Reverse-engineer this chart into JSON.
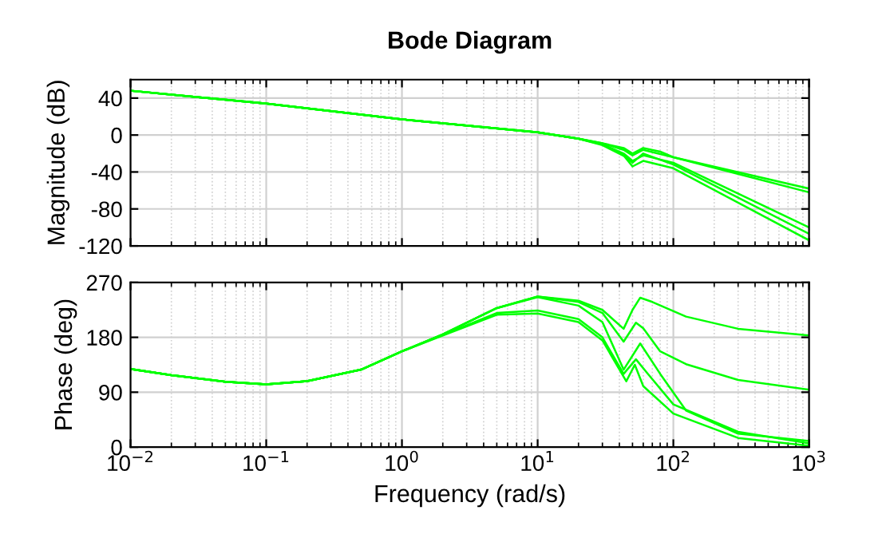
{
  "chart_data": [
    {
      "type": "line",
      "title": "Bode Diagram",
      "ylabel": "Magnitude (dB)",
      "log": "x",
      "grid": true,
      "line_style": "solid",
      "tick_labels": "y",
      "xlim": [
        0.01,
        1000
      ],
      "xticks": [
        {
          "value": 0.01,
          "label": null
        },
        {
          "value": 0.1,
          "label": null
        },
        {
          "value": 1,
          "label": null
        },
        {
          "value": 10,
          "label": null
        },
        {
          "value": 100,
          "label": null
        },
        {
          "value": 1000,
          "label": null
        }
      ],
      "ylim": [
        -120,
        60
      ],
      "yticks": [
        40,
        0,
        -40,
        -80,
        -120
      ],
      "series": [
        {
          "color": "#00ff00",
          "x": [
            0.01,
            0.1,
            1,
            10,
            20,
            30,
            43,
            50,
            60,
            80,
            100,
            1000
          ],
          "values": [
            48,
            34,
            17,
            3,
            -4,
            -9,
            -14,
            -20,
            -14,
            -18,
            -24,
            -58
          ]
        },
        {
          "color": "#00ff00",
          "x": [
            0.01,
            0.1,
            1,
            10,
            20,
            30,
            43,
            50,
            60,
            100,
            1000
          ],
          "values": [
            48,
            34,
            17,
            3,
            -4,
            -9,
            -16,
            -22,
            -16,
            -24,
            -62
          ]
        },
        {
          "color": "#00ff00",
          "x": [
            0.01,
            0.1,
            1,
            10,
            20,
            30,
            43,
            50,
            60,
            100,
            1000
          ],
          "values": [
            48,
            34,
            17,
            3,
            -4,
            -10,
            -20,
            -28,
            -22,
            -30,
            -100
          ]
        },
        {
          "color": "#00ff00",
          "x": [
            0.01,
            0.1,
            1,
            10,
            20,
            30,
            43,
            50,
            60,
            100,
            1000
          ],
          "values": [
            48,
            34,
            17,
            3,
            -4,
            -10,
            -22,
            -34,
            -28,
            -36,
            -114
          ]
        },
        {
          "color": "#00ff00",
          "x": [
            0.01,
            0.1,
            1,
            10,
            20,
            30,
            45,
            50,
            60,
            100,
            1000
          ],
          "values": [
            48,
            34,
            17,
            3,
            -4,
            -11,
            -24,
            -30,
            -20,
            -32,
            -107
          ]
        }
      ]
    },
    {
      "type": "line",
      "xlabel": "Frequency (rad/s)",
      "ylabel": "Phase (deg)",
      "log": "x",
      "grid": true,
      "line_style": "solid",
      "xlim": [
        0.01,
        1000
      ],
      "xticks": [
        {
          "value": 0.01,
          "label": "10$^{−2}$"
        },
        {
          "value": 0.1,
          "label": "10$^{−1}$"
        },
        {
          "value": 1,
          "label": "10$^{0}$"
        },
        {
          "value": 10,
          "label": "10$^{1}$"
        },
        {
          "value": 100,
          "label": "10$^{2}$"
        },
        {
          "value": 1000,
          "label": "10$^{3}$"
        }
      ],
      "ylim": [
        0,
        270
      ],
      "yticks": [
        0,
        90,
        180,
        270
      ],
      "series": [
        {
          "color": "#00ff00",
          "x": [
            0.01,
            0.02,
            0.05,
            0.1,
            0.2,
            0.5,
            1,
            2,
            5,
            10,
            20,
            30,
            43,
            50,
            57,
            70,
            124,
            300,
            1000
          ],
          "values": [
            128,
            118,
            107,
            103,
            108,
            127,
            157,
            185,
            228,
            247,
            240,
            225,
            194,
            225,
            245,
            238,
            214,
            194,
            183
          ]
        },
        {
          "color": "#00ff00",
          "x": [
            0.01,
            0.02,
            0.05,
            0.1,
            0.2,
            0.5,
            1,
            2,
            5,
            10,
            20,
            30,
            43,
            53,
            60,
            80,
            124,
            300,
            1000
          ],
          "values": [
            128,
            118,
            107,
            103,
            108,
            127,
            157,
            185,
            228,
            247,
            238,
            220,
            173,
            204,
            195,
            157,
            136,
            110,
            94
          ]
        },
        {
          "color": "#00ff00",
          "x": [
            0.01,
            0.02,
            0.05,
            0.1,
            0.2,
            0.5,
            1,
            2,
            5,
            10,
            20,
            30,
            43,
            57,
            80,
            124,
            300,
            1000
          ],
          "values": [
            128,
            118,
            107,
            103,
            108,
            127,
            157,
            185,
            228,
            246,
            232,
            205,
            127,
            170,
            120,
            60,
            22,
            10
          ]
        },
        {
          "color": "#00ff00",
          "x": [
            0.01,
            0.02,
            0.05,
            0.1,
            0.2,
            0.5,
            1,
            2,
            5,
            10,
            20,
            30,
            43,
            53,
            65,
            100,
            300,
            1000
          ],
          "values": [
            128,
            118,
            107,
            103,
            108,
            127,
            157,
            184,
            220,
            224,
            210,
            180,
            120,
            144,
            120,
            70,
            25,
            6
          ]
        },
        {
          "color": "#00ff00",
          "x": [
            0.01,
            0.02,
            0.05,
            0.1,
            0.2,
            0.5,
            1,
            2,
            5,
            10,
            20,
            30,
            45,
            52,
            60,
            100,
            300,
            1000
          ],
          "values": [
            128,
            118,
            107,
            103,
            108,
            127,
            157,
            183,
            217,
            219,
            205,
            175,
            108,
            135,
            100,
            55,
            15,
            2
          ]
        }
      ]
    }
  ]
}
